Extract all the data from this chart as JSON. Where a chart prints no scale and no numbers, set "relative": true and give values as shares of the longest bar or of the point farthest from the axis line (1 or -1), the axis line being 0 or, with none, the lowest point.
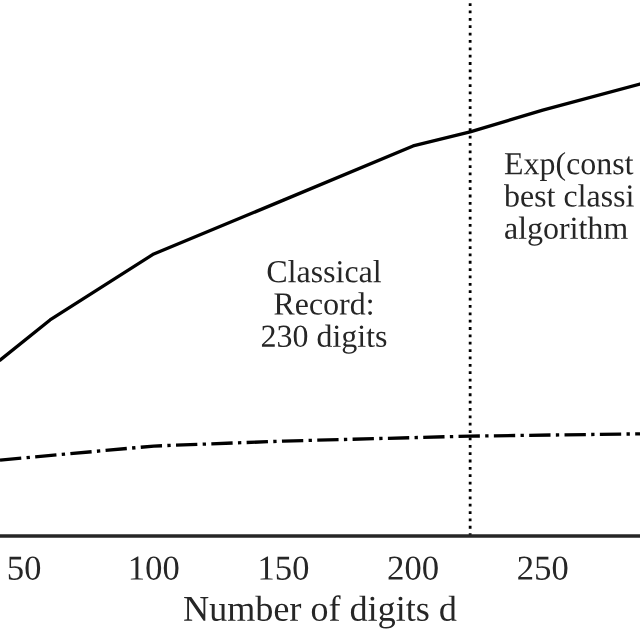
{
  "chart_data": {
    "type": "line",
    "relative": true,
    "xlabel": "Number of digits d",
    "xlim": [
      40.7,
      287.5
    ],
    "xticks": [
      50,
      100,
      150,
      200,
      250
    ],
    "series": [
      {
        "color": "#000000",
        "line_style": "solid",
        "x": [
          40.7,
          60,
          100,
          150,
          200,
          222,
          250,
          287.5
        ],
        "values": [
          0.389,
          0.478,
          0.624,
          0.743,
          0.863,
          0.894,
          0.942,
          1.0
        ]
      },
      {
        "color": "#000000",
        "line_style": "dashdot",
        "x": [
          40.7,
          100,
          150,
          222,
          287.5
        ],
        "values": [
          0.168,
          0.199,
          0.21,
          0.221,
          0.226
        ]
      }
    ],
    "ref_lines": [
      {
        "axis": "x",
        "value": 222,
        "color": "#000000",
        "line_style": "dotted"
      }
    ],
    "annotations": [
      "Classical\nRecord:\n230 digits",
      "Exp(const\nbest classi\nalgorithm"
    ],
    "grid": false,
    "legend": false
  }
}
